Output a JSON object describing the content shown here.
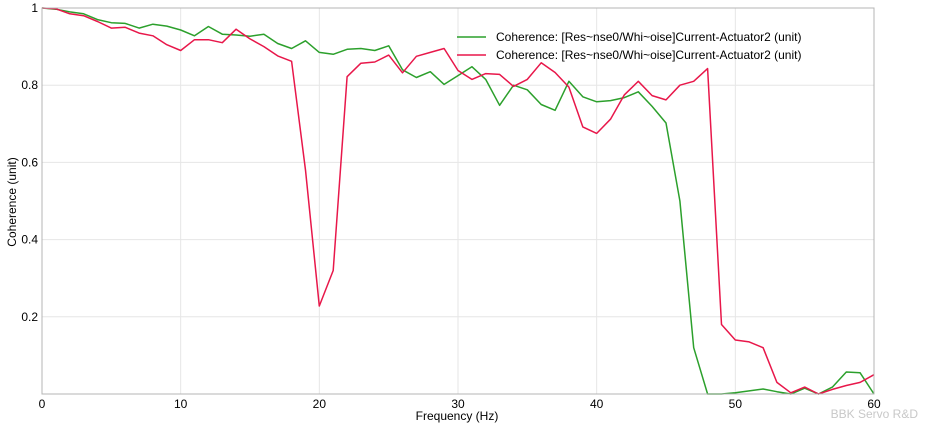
{
  "chart_data": {
    "type": "line",
    "xlabel": "Frequency (Hz)",
    "ylabel": "Coherence  (unit)",
    "xlim": [
      0,
      60
    ],
    "ylim": [
      0,
      1
    ],
    "x_ticks": [
      0,
      10,
      20,
      30,
      40,
      50,
      60
    ],
    "y_ticks": [
      0.2,
      0.4,
      0.6,
      0.8,
      1
    ],
    "grid": true,
    "legend_position": "top-right",
    "watermark": "BBK Servo R&D",
    "series": [
      {
        "name": "Coherence: [Res~nse0/Whi~oise]Current-Actuator2 (unit)",
        "color": "#2ca02c",
        "x": [
          0,
          1,
          2,
          3,
          4,
          5,
          6,
          7,
          8,
          9,
          10,
          11,
          12,
          13,
          14,
          15,
          16,
          17,
          18,
          19,
          20,
          21,
          22,
          23,
          24,
          25,
          26,
          27,
          28,
          29,
          30,
          31,
          32,
          33,
          34,
          35,
          36,
          37,
          38,
          39,
          40,
          41,
          42,
          43,
          44,
          45,
          46,
          47,
          48,
          49,
          50,
          51,
          52,
          53,
          54,
          55,
          56,
          57,
          58,
          59,
          60
        ],
        "y": [
          1.0,
          0.997,
          0.99,
          0.985,
          0.97,
          0.962,
          0.96,
          0.948,
          0.958,
          0.953,
          0.943,
          0.928,
          0.952,
          0.932,
          0.93,
          0.927,
          0.932,
          0.908,
          0.895,
          0.915,
          0.885,
          0.88,
          0.893,
          0.895,
          0.89,
          0.902,
          0.84,
          0.82,
          0.835,
          0.802,
          0.825,
          0.848,
          0.815,
          0.748,
          0.8,
          0.788,
          0.75,
          0.735,
          0.81,
          0.77,
          0.757,
          0.76,
          0.768,
          0.783,
          0.745,
          0.702,
          0.5,
          0.12,
          0.0,
          0.0,
          0.003,
          0.008,
          0.013,
          0.006,
          0.0,
          0.015,
          0.0,
          0.018,
          0.057,
          0.055,
          0.0
        ]
      },
      {
        "name": "Coherence: [Res~nse0/Whi~oise]Current-Actuator2 (unit)",
        "color": "#e8174a",
        "x": [
          0,
          1,
          2,
          3,
          4,
          5,
          6,
          7,
          8,
          9,
          10,
          11,
          12,
          13,
          14,
          15,
          16,
          17,
          18,
          19,
          20,
          21,
          22,
          23,
          24,
          25,
          26,
          27,
          28,
          29,
          30,
          31,
          32,
          33,
          34,
          35,
          36,
          37,
          38,
          39,
          40,
          41,
          42,
          43,
          44,
          45,
          46,
          47,
          48,
          49,
          50,
          51,
          52,
          53,
          54,
          55,
          56,
          57,
          58,
          59,
          60
        ],
        "y": [
          1.0,
          0.998,
          0.985,
          0.98,
          0.965,
          0.948,
          0.95,
          0.935,
          0.928,
          0.905,
          0.89,
          0.918,
          0.918,
          0.91,
          0.945,
          0.92,
          0.9,
          0.876,
          0.862,
          0.58,
          0.228,
          0.32,
          0.822,
          0.857,
          0.86,
          0.878,
          0.832,
          0.875,
          0.885,
          0.895,
          0.838,
          0.815,
          0.83,
          0.828,
          0.797,
          0.815,
          0.858,
          0.833,
          0.795,
          0.692,
          0.675,
          0.712,
          0.775,
          0.81,
          0.773,
          0.762,
          0.8,
          0.81,
          0.843,
          0.18,
          0.14,
          0.135,
          0.12,
          0.03,
          0.003,
          0.018,
          0.0,
          0.012,
          0.022,
          0.03,
          0.05
        ]
      }
    ]
  }
}
